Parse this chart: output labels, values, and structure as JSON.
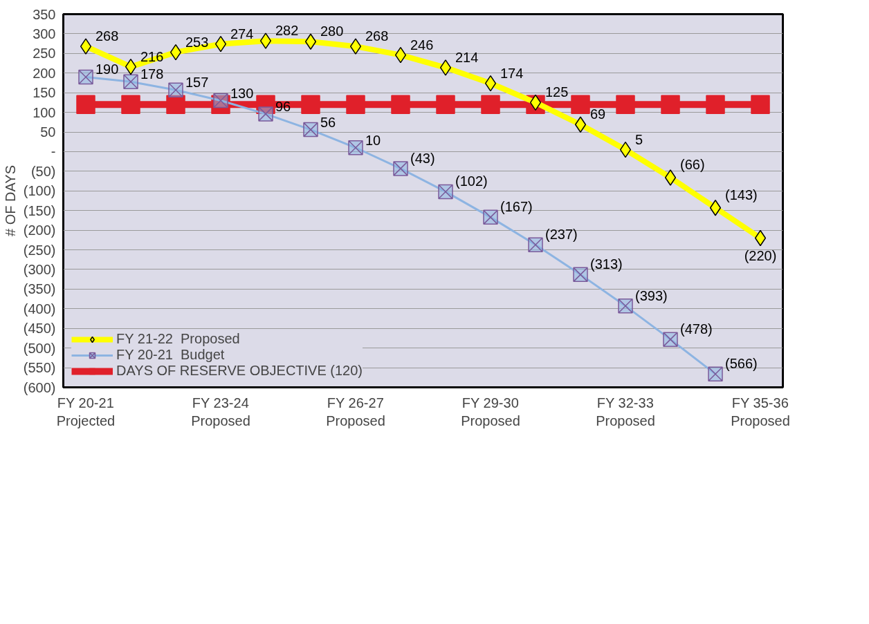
{
  "chart_data": {
    "type": "line",
    "ylabel": "# OF DAYS",
    "categories": [
      "FY 20-21\nProjected",
      null,
      null,
      "FY 23-24\nProposed",
      null,
      null,
      "FY 26-27\nProposed",
      null,
      null,
      "FY 29-30\nProposed",
      null,
      null,
      "FY 32-33\nProposed",
      null,
      null,
      "FY 35-36\nProposed"
    ],
    "series": [
      {
        "name": "FY 21-22  Proposed",
        "color": "#ffff00",
        "marker": "diamond",
        "values": [
          268,
          216,
          253,
          274,
          282,
          280,
          268,
          246,
          214,
          174,
          125,
          69,
          5,
          -66,
          -143,
          -220
        ],
        "value_labels": [
          "268",
          "216",
          "253",
          "274",
          "282",
          "280",
          "268",
          "246",
          "214",
          "174",
          "125",
          "69",
          "5",
          "(66)",
          "(143)",
          "(220)"
        ]
      },
      {
        "name": "FY 20-21  Budget",
        "color": "#8db4e2",
        "marker": "cross",
        "values": [
          190,
          178,
          157,
          130,
          96,
          56,
          10,
          -43,
          -102,
          -167,
          -237,
          -313,
          -393,
          -478,
          -566,
          null
        ],
        "value_labels": [
          "190",
          "178",
          "157",
          "130",
          "96",
          "56",
          "10",
          "(43)",
          "(102)",
          "(167)",
          "(237)",
          "(313)",
          "(393)",
          "(478)",
          "(566)",
          null
        ]
      },
      {
        "name": "DAYS OF RESERVE OBJECTIVE (120)",
        "color": "#e0202a",
        "marker": "square",
        "values": [
          120,
          120,
          120,
          120,
          120,
          120,
          120,
          120,
          120,
          120,
          120,
          120,
          120,
          120,
          120,
          120
        ]
      }
    ],
    "ylim": [
      -600,
      350
    ],
    "yticks": [
      {
        "value": -600,
        "label": "(600)"
      },
      {
        "value": -550,
        "label": "(550)"
      },
      {
        "value": -500,
        "label": "(500)"
      },
      {
        "value": -450,
        "label": "(450)"
      },
      {
        "value": -400,
        "label": "(400)"
      },
      {
        "value": -350,
        "label": "(350)"
      },
      {
        "value": -300,
        "label": "(300)"
      },
      {
        "value": -250,
        "label": "(250)"
      },
      {
        "value": -200,
        "label": "(200)"
      },
      {
        "value": -150,
        "label": "(150)"
      },
      {
        "value": -100,
        "label": "(100)"
      },
      {
        "value": -50,
        "label": "(50)"
      },
      {
        "value": 0,
        "label": "-"
      },
      50,
      100,
      150,
      200,
      250,
      300,
      350
    ],
    "grid": "y",
    "legend": "bottom left"
  }
}
